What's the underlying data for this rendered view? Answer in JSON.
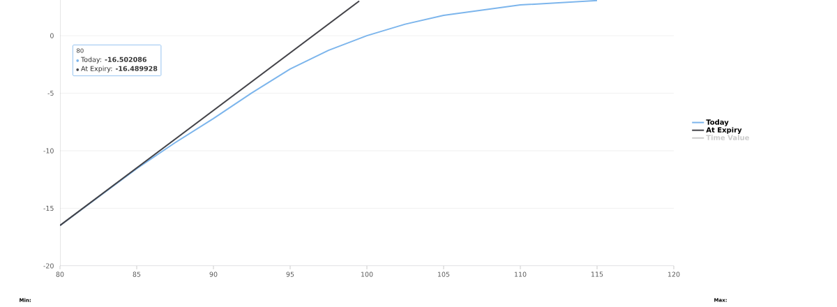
{
  "chart_data": {
    "type": "line",
    "x": [
      80,
      85,
      87.5,
      90,
      92.5,
      95,
      97.5,
      100,
      102.5,
      105,
      110,
      115
    ],
    "series": [
      {
        "name": "Today",
        "color": "#7cb5ec",
        "values": [
          -16.5,
          -11.55,
          -9.3,
          -7.2,
          -4.97,
          -2.9,
          -1.27,
          0,
          1.0,
          1.76,
          2.67,
          3.05
        ]
      },
      {
        "name": "At Expiry",
        "color": "#434348",
        "x": [
          80,
          99.5
        ],
        "values": [
          -16.49,
          3.01
        ]
      },
      {
        "name": "Time Value",
        "color": "#cccccc",
        "values": [
          null,
          null,
          null,
          null,
          null,
          null,
          null,
          null,
          null,
          null,
          null,
          null
        ]
      }
    ],
    "xlim": [
      80,
      120
    ],
    "ylim": [
      -20,
      3.1
    ],
    "xticks": [
      80,
      85,
      90,
      95,
      100,
      105,
      110,
      115,
      120
    ],
    "yticks": [
      -20,
      -15,
      -10,
      -5,
      0
    ],
    "grid": "y",
    "legend": "right",
    "marker": "none",
    "line_style": "solid",
    "annotations": [
      "80",
      "Today: **-16.502086**",
      "At Expiry: **-16.489928**",
      "Min:",
      "Max:"
    ]
  }
}
